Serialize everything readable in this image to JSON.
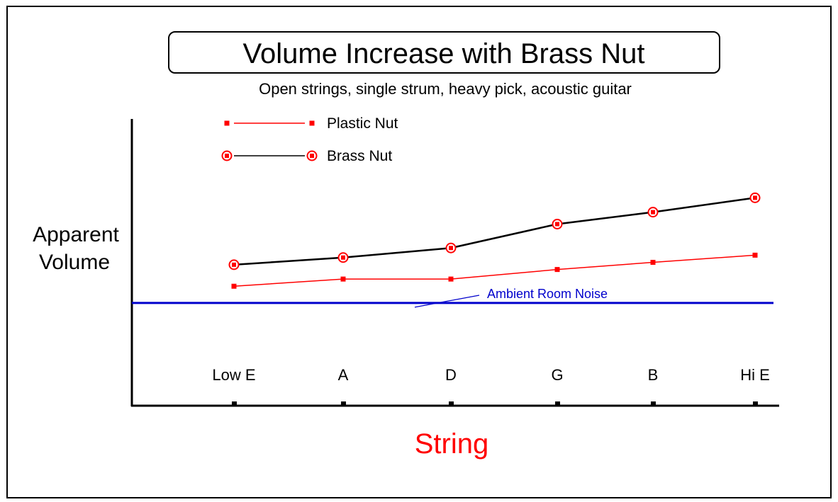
{
  "chart_data": {
    "type": "line",
    "title": "Volume Increase with Brass Nut",
    "subtitle": "Open strings, single strum, heavy pick, acoustic guitar",
    "xlabel": "String",
    "ylabel_lines": [
      "Apparent",
      "Volume"
    ],
    "categories": [
      "Low E",
      "A",
      "D",
      "G",
      "B",
      "Hi E"
    ],
    "ylim": [
      0,
      12
    ],
    "grid": false,
    "legend_position": "top-left",
    "series": [
      {
        "name": "Plastic Nut",
        "values": [
          5.0,
          5.3,
          5.3,
          5.7,
          6.0,
          6.3
        ],
        "color": "#ff0000",
        "marker": "square"
      },
      {
        "name": "Brass Nut",
        "values": [
          5.9,
          6.2,
          6.6,
          7.6,
          8.1,
          8.7
        ],
        "color": "#000000",
        "marker_color": "#ff0000",
        "marker": "circled-square"
      }
    ],
    "reference_line": {
      "label": "Ambient Room Noise",
      "value": 4.3,
      "color": "#0000cc"
    }
  }
}
